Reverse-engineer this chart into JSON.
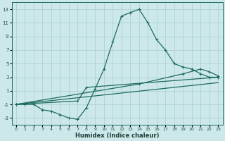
{
  "xlabel": "Humidex (Indice chaleur)",
  "bg_color": "#cce8e8",
  "grid_color": "#aacece",
  "line_color": "#1e6b5e",
  "xlim": [
    -0.5,
    23.5
  ],
  "ylim": [
    -4,
    14
  ],
  "xticks": [
    0,
    1,
    2,
    3,
    4,
    5,
    6,
    7,
    8,
    9,
    10,
    11,
    12,
    13,
    14,
    15,
    16,
    17,
    18,
    19,
    20,
    21,
    22,
    23
  ],
  "yticks": [
    -3,
    -1,
    1,
    3,
    5,
    7,
    9,
    11,
    13
  ],
  "curve_x": [
    0,
    1,
    2,
    3,
    4,
    5,
    6,
    7,
    8,
    9,
    10,
    11,
    12,
    13,
    14,
    15,
    16,
    17,
    18,
    19,
    20,
    21,
    22,
    23
  ],
  "curve_y": [
    -1.0,
    -1.0,
    -1.0,
    -1.8,
    -2.0,
    -2.5,
    -3.0,
    -3.2,
    -1.5,
    1.3,
    4.2,
    8.2,
    12.0,
    12.5,
    13.0,
    11.0,
    8.5,
    7.0,
    5.0,
    4.5,
    4.2,
    3.5,
    3.0,
    3.0
  ],
  "line1_x": [
    0,
    14,
    19,
    21,
    22,
    23
  ],
  "line1_y": [
    -1.0,
    2.0,
    3.5,
    4.2,
    3.8,
    3.2
  ],
  "line2_x": [
    0,
    7,
    8,
    23
  ],
  "line2_y": [
    -1.0,
    -0.5,
    1.5,
    3.0
  ],
  "line3_x": [
    0,
    23
  ],
  "line3_y": [
    -1.0,
    2.2
  ]
}
